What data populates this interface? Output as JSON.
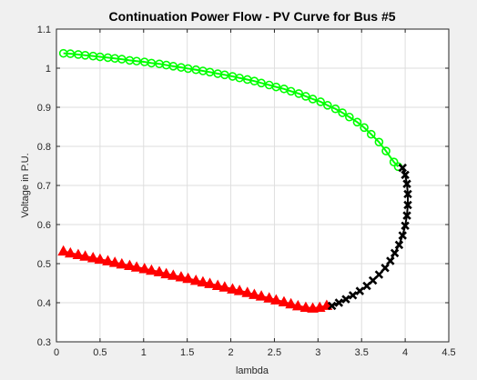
{
  "figure_background": "#f0f0f0",
  "plot_background": "#ffffff",
  "chart_data": {
    "type": "scatter",
    "title": "Continuation Power Flow - PV Curve for Bus #5",
    "xlabel": "lambda",
    "ylabel": "Voltage in P.U.",
    "xlim": [
      0,
      4.5
    ],
    "ylim": [
      0.3,
      1.1
    ],
    "xticks": [
      "0",
      "0.5",
      "1",
      "1.5",
      "2",
      "2.5",
      "3",
      "3.5",
      "4",
      "4.5"
    ],
    "yticks": [
      "0.3",
      "0.4",
      "0.5",
      "0.6",
      "0.7",
      "0.8",
      "0.9",
      "1",
      "1.1"
    ],
    "grid": true,
    "series": [
      {
        "marker": "circle",
        "color": "#00ff00",
        "line": true,
        "points": [
          [
            0.08,
            1.038
          ],
          [
            0.16,
            1.037
          ],
          [
            0.25,
            1.035
          ],
          [
            0.33,
            1.033
          ],
          [
            0.42,
            1.031
          ],
          [
            0.5,
            1.029
          ],
          [
            0.59,
            1.027
          ],
          [
            0.67,
            1.025
          ],
          [
            0.75,
            1.023
          ],
          [
            0.84,
            1.02
          ],
          [
            0.92,
            1.018
          ],
          [
            1.01,
            1.016
          ],
          [
            1.09,
            1.013
          ],
          [
            1.18,
            1.011
          ],
          [
            1.26,
            1.008
          ],
          [
            1.34,
            1.005
          ],
          [
            1.43,
            1.002
          ],
          [
            1.51,
            0.999
          ],
          [
            1.6,
            0.996
          ],
          [
            1.68,
            0.993
          ],
          [
            1.76,
            0.99
          ],
          [
            1.85,
            0.986
          ],
          [
            1.93,
            0.983
          ],
          [
            2.02,
            0.979
          ],
          [
            2.1,
            0.975
          ],
          [
            2.19,
            0.971
          ],
          [
            2.27,
            0.967
          ],
          [
            2.35,
            0.962
          ],
          [
            2.44,
            0.957
          ],
          [
            2.52,
            0.952
          ],
          [
            2.61,
            0.947
          ],
          [
            2.69,
            0.941
          ],
          [
            2.78,
            0.935
          ],
          [
            2.86,
            0.928
          ],
          [
            2.94,
            0.921
          ],
          [
            3.03,
            0.914
          ],
          [
            3.11,
            0.905
          ],
          [
            3.2,
            0.896
          ],
          [
            3.28,
            0.886
          ],
          [
            3.36,
            0.875
          ],
          [
            3.45,
            0.862
          ],
          [
            3.53,
            0.848
          ],
          [
            3.61,
            0.831
          ],
          [
            3.7,
            0.811
          ],
          [
            3.78,
            0.788
          ],
          [
            3.87,
            0.76
          ],
          [
            3.92,
            0.748
          ]
        ]
      },
      {
        "marker": "triangle",
        "color": "#ff0000",
        "line": true,
        "points": [
          [
            0.08,
            0.532
          ],
          [
            0.16,
            0.527
          ],
          [
            0.25,
            0.523
          ],
          [
            0.33,
            0.519
          ],
          [
            0.42,
            0.515
          ],
          [
            0.5,
            0.511
          ],
          [
            0.59,
            0.507
          ],
          [
            0.67,
            0.503
          ],
          [
            0.75,
            0.499
          ],
          [
            0.84,
            0.495
          ],
          [
            0.92,
            0.491
          ],
          [
            1.01,
            0.487
          ],
          [
            1.09,
            0.483
          ],
          [
            1.18,
            0.479
          ],
          [
            1.26,
            0.474
          ],
          [
            1.34,
            0.47
          ],
          [
            1.43,
            0.466
          ],
          [
            1.51,
            0.462
          ],
          [
            1.6,
            0.457
          ],
          [
            1.68,
            0.453
          ],
          [
            1.76,
            0.449
          ],
          [
            1.85,
            0.444
          ],
          [
            1.93,
            0.44
          ],
          [
            2.02,
            0.435
          ],
          [
            2.1,
            0.431
          ],
          [
            2.19,
            0.426
          ],
          [
            2.27,
            0.421
          ],
          [
            2.35,
            0.417
          ],
          [
            2.44,
            0.412
          ],
          [
            2.52,
            0.407
          ],
          [
            2.61,
            0.402
          ],
          [
            2.69,
            0.397
          ],
          [
            2.77,
            0.392
          ],
          [
            2.86,
            0.388
          ],
          [
            2.94,
            0.386
          ],
          [
            3.02,
            0.388
          ],
          [
            3.1,
            0.393
          ]
        ]
      },
      {
        "marker": "x",
        "color": "#000000",
        "line": true,
        "points": [
          [
            3.16,
            0.392
          ],
          [
            3.24,
            0.4
          ],
          [
            3.32,
            0.409
          ],
          [
            3.4,
            0.419
          ],
          [
            3.48,
            0.43
          ],
          [
            3.56,
            0.443
          ],
          [
            3.63,
            0.457
          ],
          [
            3.7,
            0.472
          ],
          [
            3.77,
            0.489
          ],
          [
            3.83,
            0.507
          ],
          [
            3.88,
            0.527
          ],
          [
            3.93,
            0.548
          ],
          [
            3.97,
            0.572
          ],
          [
            4.0,
            0.597
          ],
          [
            4.02,
            0.623
          ],
          [
            4.03,
            0.65
          ],
          [
            4.03,
            0.678
          ],
          [
            4.02,
            0.704
          ],
          [
            4.0,
            0.727
          ],
          [
            3.97,
            0.745
          ]
        ]
      }
    ]
  }
}
